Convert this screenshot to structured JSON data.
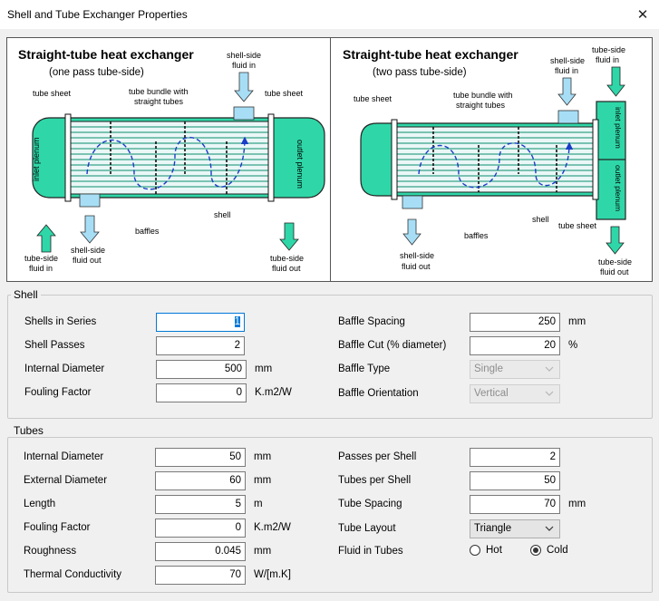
{
  "window": {
    "title": "Shell and Tube Exchanger Properties",
    "close_glyph": "✕"
  },
  "diagram_left": {
    "title": "Straight-tube heat exchanger",
    "subtitle": "(one pass tube-side)",
    "tube_sheet": "tube sheet",
    "tube_sheet_right": "tube sheet",
    "bundle_1": "tube bundle with",
    "bundle_2": "straight tubes",
    "shell_in_1": "shell-side",
    "shell_in_2": "fluid in",
    "inlet_plenum": "inlet plenum",
    "outlet_plenum": "outlet plenum",
    "shell": "shell",
    "baffles": "baffles",
    "tube_in_1": "tube-side",
    "tube_in_2": "fluid in",
    "shell_out_1": "shell-side",
    "shell_out_2": "fluid out",
    "tube_out_1": "tube-side",
    "tube_out_2": "fluid out"
  },
  "diagram_right": {
    "title": "Straight-tube heat exchanger",
    "subtitle": "(two pass tube-side)",
    "tube_sheet": "tube sheet",
    "tube_sheet_bottom": "tube sheet",
    "bundle_1": "tube bundle with",
    "bundle_2": "straight tubes",
    "shell_in_1": "shell-side",
    "shell_in_2": "fluid in",
    "tube_in_1": "tube-side",
    "tube_in_2": "fluid in",
    "inlet_plenum": "inlet plenum",
    "outlet_plenum": "outlet plenum",
    "shell": "shell",
    "baffles": "baffles",
    "shell_out_1": "shell-side",
    "shell_out_2": "fluid out",
    "tube_out_1": "tube-side",
    "tube_out_2": "fluid out"
  },
  "shell": {
    "group_label": "Shell",
    "shells_in_series": {
      "label": "Shells in Series",
      "value": "1"
    },
    "shell_passes": {
      "label": "Shell Passes",
      "value": "2"
    },
    "internal_diameter": {
      "label": "Internal Diameter",
      "value": "500",
      "unit": "mm"
    },
    "fouling_factor": {
      "label": "Fouling Factor",
      "value": "0",
      "unit": "K.m2/W"
    },
    "baffle_spacing": {
      "label": "Baffle Spacing",
      "value": "250",
      "unit": "mm"
    },
    "baffle_cut": {
      "label": "Baffle Cut (% diameter)",
      "value": "20",
      "unit": "%"
    },
    "baffle_type": {
      "label": "Baffle Type",
      "value": "Single"
    },
    "baffle_orientation": {
      "label": "Baffle Orientation",
      "value": "Vertical"
    }
  },
  "tubes": {
    "group_label": "Tubes",
    "internal_diameter": {
      "label": "Internal Diameter",
      "value": "50",
      "unit": "mm"
    },
    "external_diameter": {
      "label": "External Diameter",
      "value": "60",
      "unit": "mm"
    },
    "length": {
      "label": "Length",
      "value": "5",
      "unit": "m"
    },
    "fouling_factor": {
      "label": "Fouling Factor",
      "value": "0",
      "unit": "K.m2/W"
    },
    "roughness": {
      "label": "Roughness",
      "value": "0.045",
      "unit": "mm"
    },
    "thermal_conductivity": {
      "label": "Thermal Conductivity",
      "value": "70",
      "unit": "W/[m.K]"
    },
    "passes_per_shell": {
      "label": "Passes per Shell",
      "value": "2"
    },
    "tubes_per_shell": {
      "label": "Tubes per Shell",
      "value": "50"
    },
    "tube_spacing": {
      "label": "Tube Spacing",
      "value": "70",
      "unit": "mm"
    },
    "tube_layout": {
      "label": "Tube Layout",
      "value": "Triangle"
    },
    "fluid_in_tubes": {
      "label": "Fluid in Tubes",
      "options": [
        "Hot",
        "Cold"
      ],
      "selected": "Cold"
    }
  }
}
